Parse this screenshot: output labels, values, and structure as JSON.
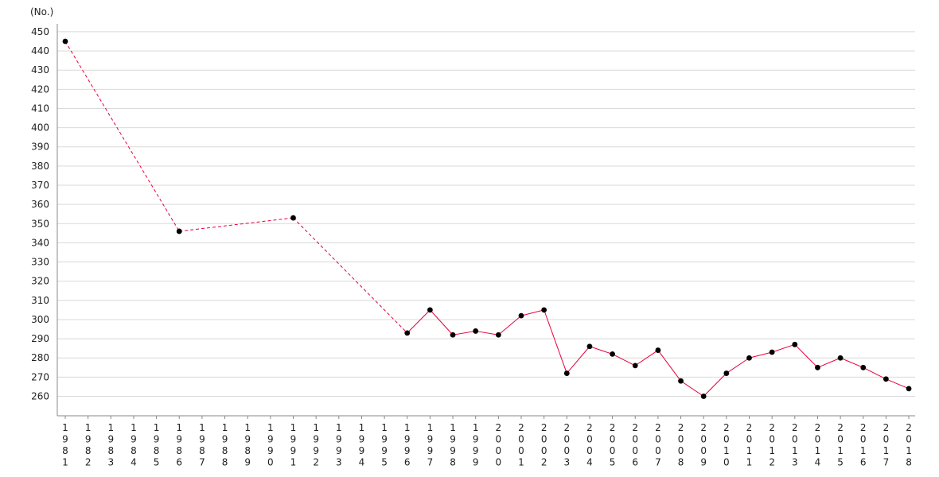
{
  "chart_data": {
    "type": "line",
    "title": "",
    "unit_label": "(No.)",
    "xlabel": "",
    "ylabel": "",
    "categories": [
      "1981",
      "1982",
      "1983",
      "1984",
      "1985",
      "1986",
      "1987",
      "1988",
      "1989",
      "1990",
      "1991",
      "1992",
      "1993",
      "1994",
      "1995",
      "1996",
      "1997",
      "1998",
      "1999",
      "2000",
      "2001",
      "2002",
      "2003",
      "2004",
      "2005",
      "2006",
      "2007",
      "2008",
      "2009",
      "2010",
      "2011",
      "2012",
      "2013",
      "2014",
      "2015",
      "2016",
      "2017",
      "2018"
    ],
    "series": [
      {
        "values": [
          445,
          null,
          null,
          null,
          null,
          346,
          null,
          null,
          null,
          null,
          353,
          null,
          null,
          null,
          null,
          293,
          305,
          292,
          294,
          292,
          302,
          305,
          272,
          286,
          282,
          276,
          284,
          268,
          260,
          272,
          280,
          283,
          287,
          275,
          280,
          275,
          269,
          264
        ]
      }
    ],
    "gap_style": "dashed",
    "ylim": [
      255,
      455
    ],
    "yticks": [
      260,
      270,
      280,
      290,
      300,
      310,
      320,
      330,
      340,
      350,
      360,
      370,
      380,
      390,
      400,
      410,
      420,
      430,
      440,
      450
    ],
    "grid": true,
    "line_color": "#e8003d",
    "marker_color": "#000000",
    "legend": "none"
  }
}
